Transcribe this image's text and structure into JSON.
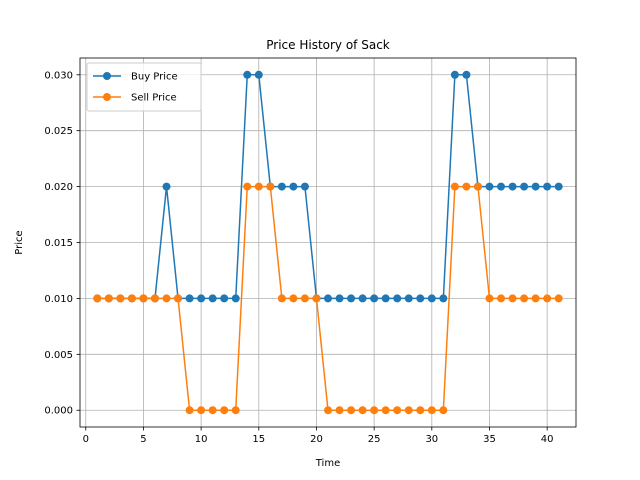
{
  "chart_data": {
    "type": "line",
    "title": "Price History of Sack",
    "xlabel": "Time",
    "ylabel": "Price",
    "xlim": [
      -0.5,
      42.5
    ],
    "ylim": [
      -0.0015,
      0.0315
    ],
    "xticks": [
      0,
      5,
      10,
      15,
      20,
      25,
      30,
      35,
      40
    ],
    "xtick_labels": [
      "0",
      "5",
      "10",
      "15",
      "20",
      "25",
      "30",
      "35",
      "40"
    ],
    "yticks": [
      0.0,
      0.005,
      0.01,
      0.015,
      0.02,
      0.025,
      0.03
    ],
    "ytick_labels": [
      "0.000",
      "0.005",
      "0.010",
      "0.015",
      "0.020",
      "0.025",
      "0.030"
    ],
    "grid": true,
    "legend_position": "top-left",
    "x": [
      1,
      2,
      3,
      4,
      5,
      6,
      7,
      8,
      9,
      10,
      11,
      12,
      13,
      14,
      15,
      16,
      17,
      18,
      19,
      20,
      21,
      22,
      23,
      24,
      25,
      26,
      27,
      28,
      29,
      30,
      31,
      32,
      33,
      34,
      35,
      36,
      37,
      38,
      39,
      40,
      41
    ],
    "series": [
      {
        "name": "Buy Price",
        "color": "#1f77b4",
        "values": [
          0.01,
          0.01,
          0.01,
          0.01,
          0.01,
          0.01,
          0.02,
          0.01,
          0.01,
          0.01,
          0.01,
          0.01,
          0.01,
          0.03,
          0.03,
          0.02,
          0.02,
          0.02,
          0.02,
          0.01,
          0.01,
          0.01,
          0.01,
          0.01,
          0.01,
          0.01,
          0.01,
          0.01,
          0.01,
          0.01,
          0.01,
          0.03,
          0.03,
          0.02,
          0.02,
          0.02,
          0.02,
          0.02,
          0.02,
          0.02,
          0.02
        ]
      },
      {
        "name": "Sell Price",
        "color": "#ff7f0e",
        "values": [
          0.01,
          0.01,
          0.01,
          0.01,
          0.01,
          0.01,
          0.01,
          0.01,
          0.0,
          0.0,
          0.0,
          0.0,
          0.0,
          0.02,
          0.02,
          0.02,
          0.01,
          0.01,
          0.01,
          0.01,
          0.0,
          0.0,
          0.0,
          0.0,
          0.0,
          0.0,
          0.0,
          0.0,
          0.0,
          0.0,
          0.0,
          0.02,
          0.02,
          0.02,
          0.01,
          0.01,
          0.01,
          0.01,
          0.01,
          0.01,
          0.01
        ]
      }
    ]
  }
}
